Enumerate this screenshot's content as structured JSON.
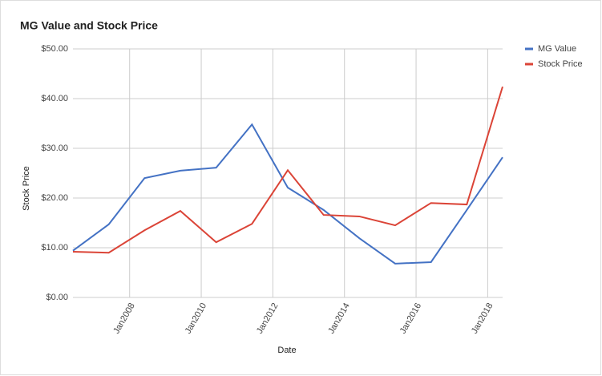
{
  "chart_data": {
    "type": "line",
    "title": "MG Value and Stock Price",
    "x_label": "Date",
    "y_label": "Stock Price",
    "x": [
      "2006-06",
      "2007-06",
      "2008-06",
      "2009-06",
      "2010-06",
      "2011-06",
      "2012-06",
      "2013-06",
      "2014-06",
      "2015-06",
      "2016-06",
      "2017-06",
      "2018-06"
    ],
    "series": [
      {
        "name": "MG Value",
        "color": "#4472c4",
        "values": [
          9.4,
          14.7,
          24.0,
          25.5,
          26.1,
          34.8,
          22.1,
          17.6,
          11.9,
          6.8,
          7.1,
          17.6,
          28.2
        ]
      },
      {
        "name": "Stock Price",
        "color": "#db4437",
        "values": [
          9.2,
          9.0,
          13.5,
          17.4,
          11.1,
          14.8,
          25.6,
          16.6,
          16.3,
          14.5,
          19.0,
          18.7,
          42.4
        ]
      }
    ],
    "xlim": [
      "2006-06",
      "2018-06"
    ],
    "xticks": [
      {
        "value": "2008-01",
        "label": "Jan2008"
      },
      {
        "value": "2010-01",
        "label": "Jan2010"
      },
      {
        "value": "2012-01",
        "label": "Jan2012"
      },
      {
        "value": "2014-01",
        "label": "Jan2014"
      },
      {
        "value": "2016-01",
        "label": "Jan2016"
      },
      {
        "value": "2018-01",
        "label": "Jan2018"
      }
    ],
    "ylim": [
      0,
      50
    ],
    "yticks": [
      {
        "value": 0,
        "label": "$0.00"
      },
      {
        "value": 10,
        "label": "$10.00"
      },
      {
        "value": 20,
        "label": "$20.00"
      },
      {
        "value": 30,
        "label": "$30.00"
      },
      {
        "value": 40,
        "label": "$40.00"
      },
      {
        "value": 50,
        "label": "$50.00"
      }
    ],
    "grid": true,
    "legend": "right"
  }
}
